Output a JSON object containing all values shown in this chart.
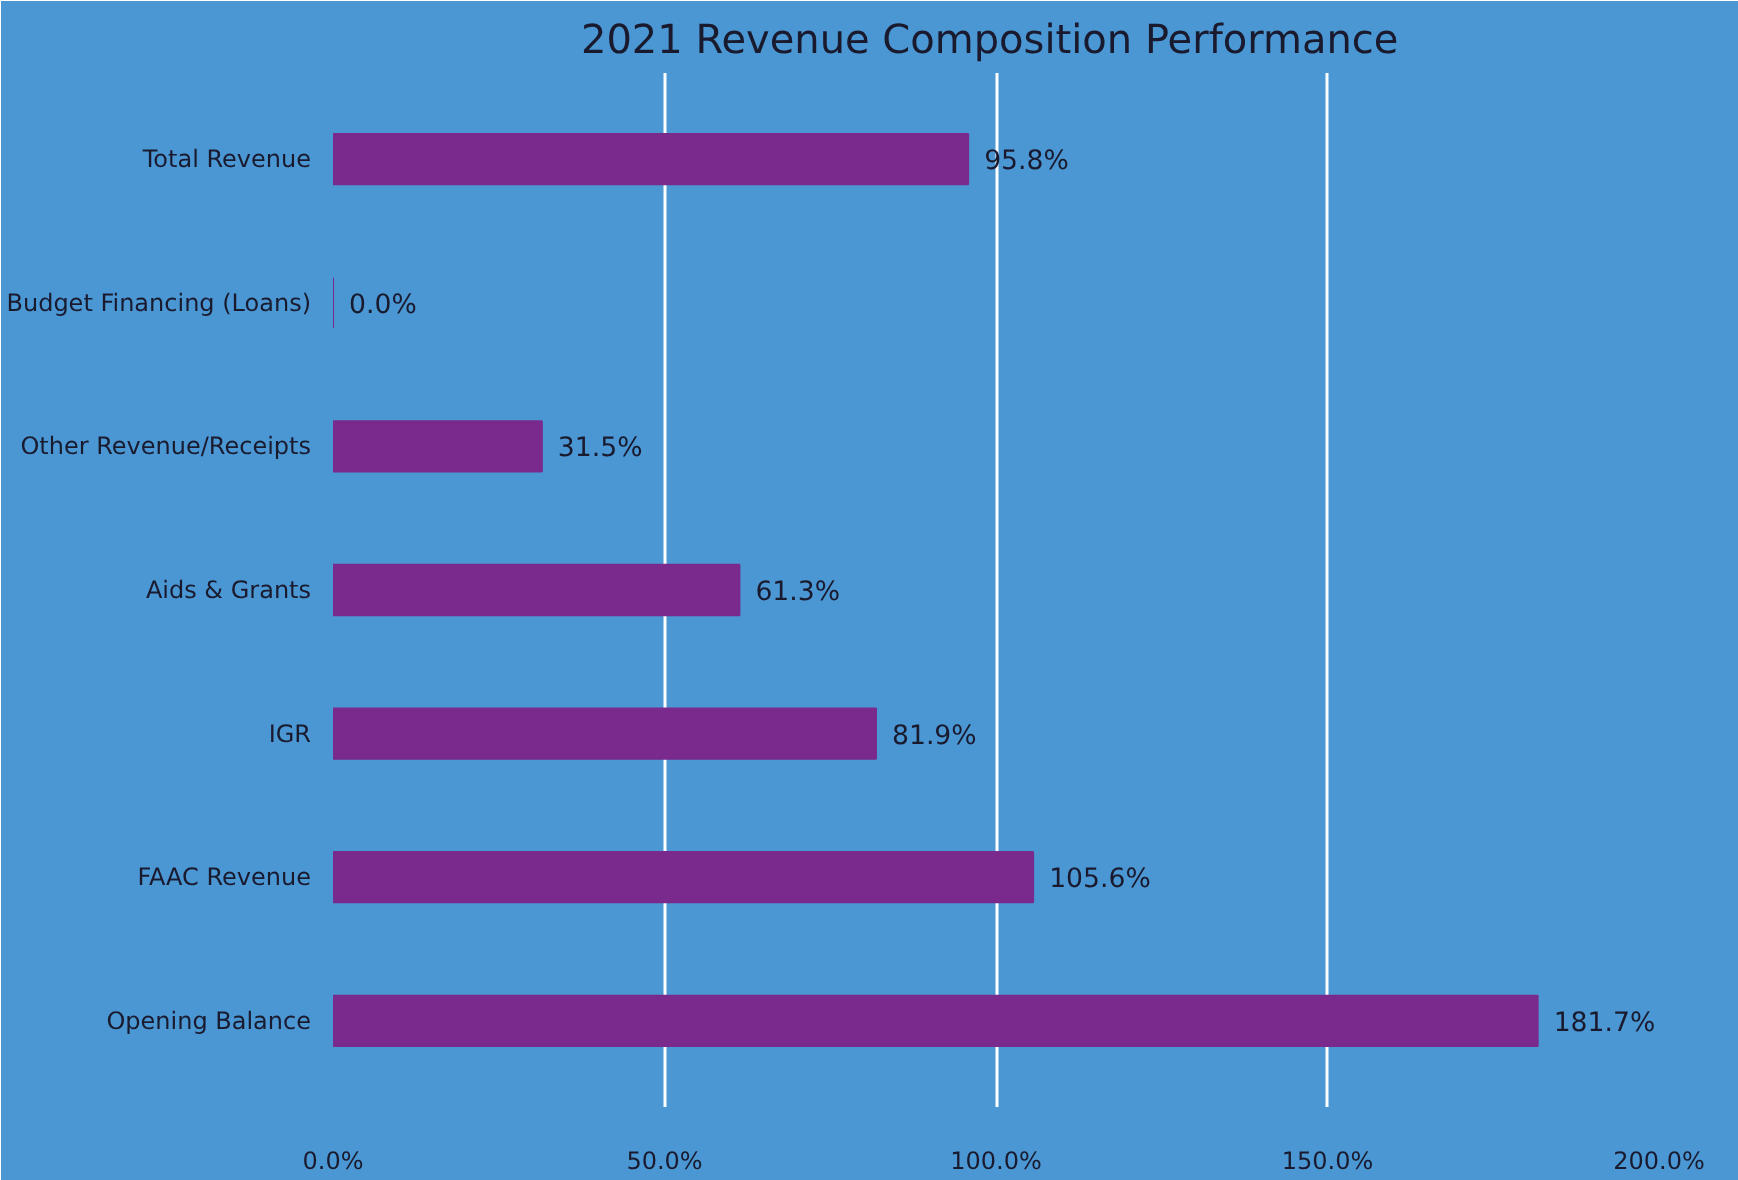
{
  "chart_data": {
    "type": "bar",
    "orientation": "horizontal",
    "title": "2021 Revenue Composition  Performance",
    "categories": [
      "Total Revenue",
      "Budget Financing (Loans)",
      "Other Revenue/Receipts",
      "Aids & Grants",
      "IGR",
      "FAAC Revenue",
      "Opening Balance"
    ],
    "values": [
      95.8,
      0.0,
      31.5,
      61.3,
      81.9,
      105.6,
      181.7
    ],
    "value_labels": [
      "95.8%",
      "0.0%",
      "31.5%",
      "61.3%",
      "81.9%",
      "105.6%",
      "181.7%"
    ],
    "color": "#7a2a8c",
    "xlim": [
      0,
      200
    ],
    "xticks": [
      {
        "value": 0,
        "label": "0.0%"
      },
      {
        "value": 50,
        "label": "50.0%"
      },
      {
        "value": 100,
        "label": "100.0%"
      },
      {
        "value": 150,
        "label": "150.0%"
      },
      {
        "value": 200,
        "label": "200.0%"
      }
    ],
    "grid": "x"
  }
}
